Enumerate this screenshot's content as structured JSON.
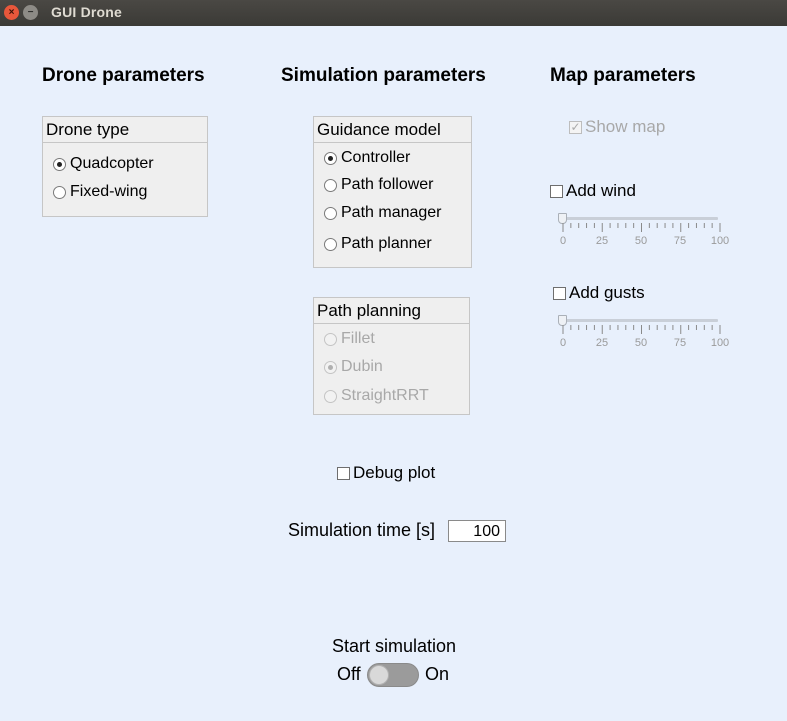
{
  "window": {
    "title": "GUI Drone",
    "close_glyph": "×",
    "minimize_glyph": "−"
  },
  "drone": {
    "heading": "Drone parameters",
    "group_title": "Drone type",
    "options": [
      {
        "label": "Quadcopter",
        "selected": true
      },
      {
        "label": "Fixed-wing",
        "selected": false
      }
    ]
  },
  "simulation": {
    "heading": "Simulation parameters",
    "guidance": {
      "group_title": "Guidance model",
      "options": [
        {
          "label": "Controller",
          "selected": true
        },
        {
          "label": "Path follower",
          "selected": false
        },
        {
          "label": "Path manager",
          "selected": false
        },
        {
          "label": "Path planner",
          "selected": false
        }
      ]
    },
    "path_planning": {
      "group_title": "Path planning",
      "enabled": false,
      "options": [
        {
          "label": "Fillet",
          "selected": false
        },
        {
          "label": "Dubin",
          "selected": true
        },
        {
          "label": "StraightRRT",
          "selected": false
        }
      ]
    },
    "debug_plot": {
      "label": "Debug plot",
      "checked": false
    },
    "time": {
      "label": "Simulation time [s]",
      "value": "100"
    }
  },
  "map": {
    "heading": "Map parameters",
    "show_map": {
      "label": "Show map",
      "checked": true,
      "enabled": false,
      "check_glyph": "✓"
    },
    "wind": {
      "label": "Add wind",
      "checked": false,
      "slider": {
        "value": 0,
        "min": 0,
        "max": 100,
        "tick_labels": [
          "0",
          "25",
          "50",
          "75",
          "100"
        ]
      }
    },
    "gusts": {
      "label": "Add gusts",
      "checked": false,
      "slider": {
        "value": 0,
        "min": 0,
        "max": 100,
        "tick_labels": [
          "0",
          "25",
          "50",
          "75",
          "100"
        ]
      }
    }
  },
  "start": {
    "label": "Start simulation",
    "off_label": "Off",
    "on_label": "On",
    "on": false
  },
  "colors": {
    "background": "#e8f0fc",
    "disabled_text": "#a8a8a8",
    "switch_track": "#9b9b9b"
  }
}
